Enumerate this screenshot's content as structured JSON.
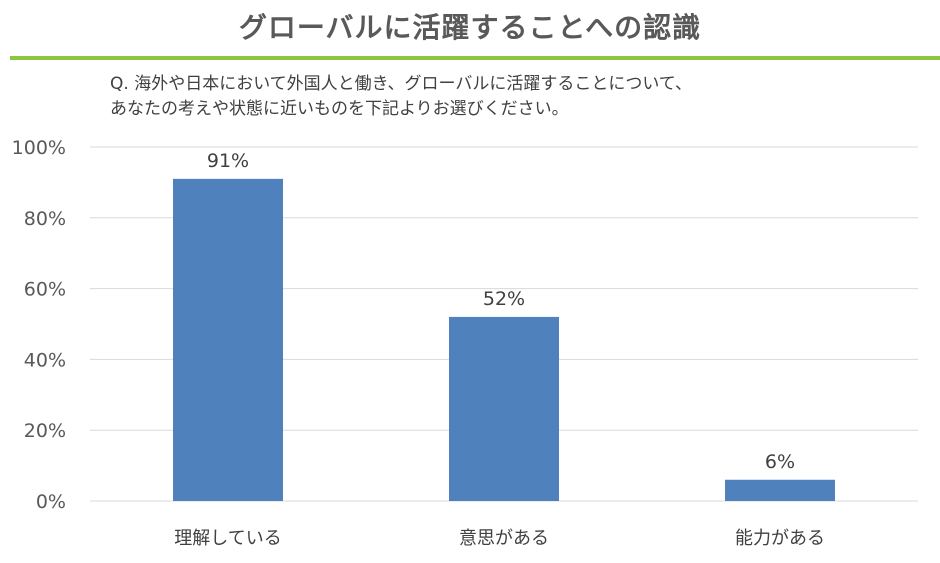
{
  "title": "グローバルに活躍することへの認識",
  "question": {
    "line1": "Q. 海外や日本において外国人と働き、グローバルに活躍することについて、",
    "line2": "あなたの考えや状態に近いものを下記よりお選びください。"
  },
  "colors": {
    "accent_rule": "#8cc641",
    "bar": "#4f81bd",
    "grid": "#d9d9d9"
  },
  "chart_data": {
    "type": "bar",
    "categories": [
      "理解している",
      "意思がある",
      "能力がある"
    ],
    "values": [
      91,
      52,
      6
    ],
    "data_labels": [
      "91%",
      "52%",
      "6%"
    ],
    "yticks": [
      "0%",
      "20%",
      "40%",
      "60%",
      "80%",
      "100%"
    ],
    "ylim": [
      0,
      100
    ],
    "grid": true
  }
}
